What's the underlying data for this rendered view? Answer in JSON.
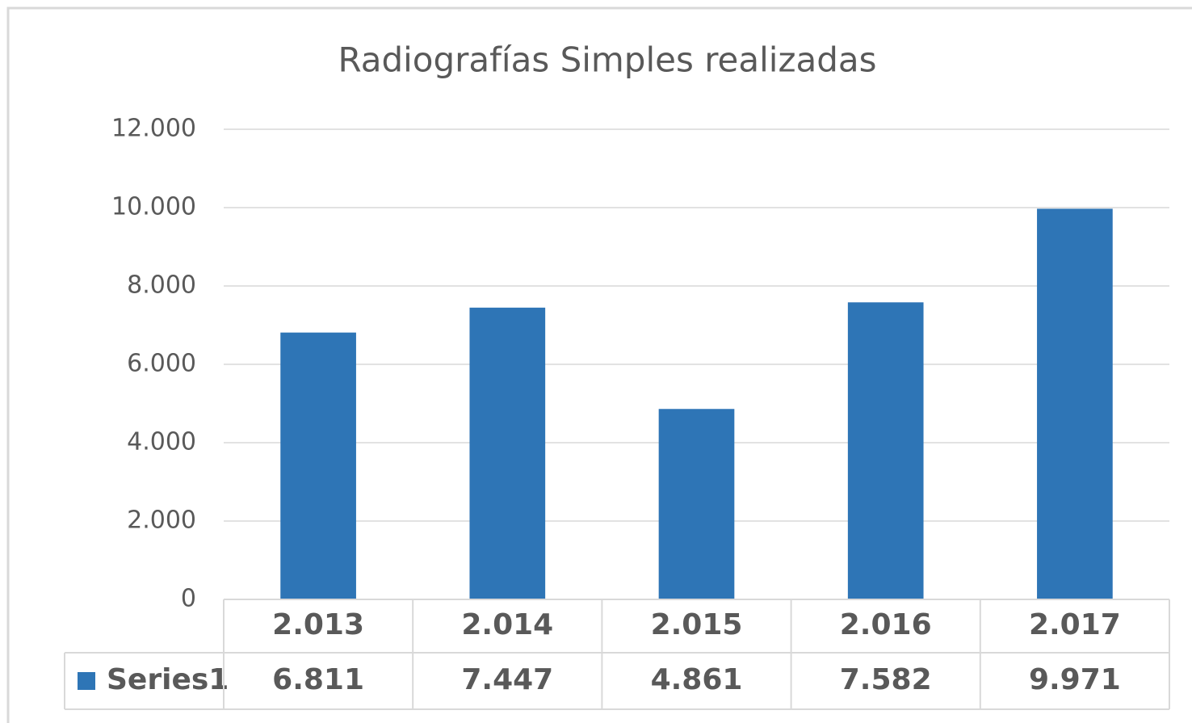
{
  "chart_data": {
    "type": "bar",
    "title": "Radiografías Simples realizadas",
    "categories": [
      "2.013",
      "2.014",
      "2.015",
      "2.016",
      "2.017"
    ],
    "series": [
      {
        "name": "Series1",
        "color": "#2e75b6",
        "values": [
          6811,
          7447,
          4861,
          7582,
          9971
        ],
        "value_labels": [
          "6.811",
          "7.447",
          "4.861",
          "7.582",
          "9.971"
        ]
      }
    ],
    "ylim": [
      0,
      12000
    ],
    "yticks": [
      0,
      {
        "value": 2000,
        "label": "2.000"
      },
      {
        "value": 4000,
        "label": "4.000"
      },
      {
        "value": 6000,
        "label": "6.000"
      },
      {
        "value": 8000,
        "label": "8.000"
      },
      {
        "value": 10000,
        "label": "10.000"
      },
      {
        "value": 12000,
        "label": "12.000"
      }
    ],
    "grid": true,
    "data_table": true
  }
}
